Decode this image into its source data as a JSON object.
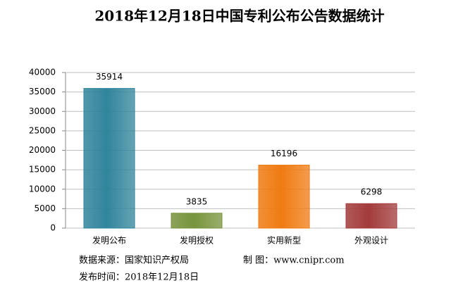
{
  "chart_data": {
    "type": "bar",
    "title": "2018年12月18日中国专利公布公告数据统计",
    "categories": [
      "发明公布",
      "发明授权",
      "实用新型",
      "外观设计"
    ],
    "values": [
      35914,
      3835,
      16196,
      6298
    ],
    "colors": [
      "#31859c",
      "#77933c",
      "#f07b12",
      "#a33b3b"
    ],
    "ylim": [
      0,
      40000
    ],
    "yticks": [
      0,
      5000,
      10000,
      15000,
      20000,
      25000,
      30000,
      35000,
      40000
    ],
    "grid": true,
    "annotations": [
      "数据来源：国家知识产权局",
      "制 图：www.cnipr.com",
      "发布时间：2018年12月18日"
    ]
  }
}
